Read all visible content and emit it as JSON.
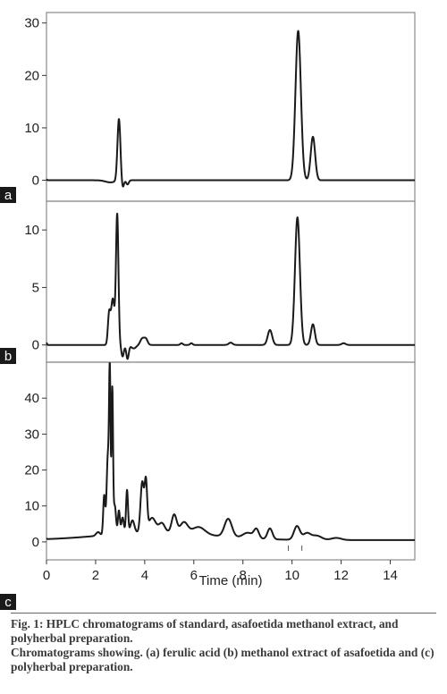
{
  "chart_data": {
    "type": "line",
    "xlabel": "Time (min)",
    "xlim": [
      0,
      15
    ],
    "x_ticks": [
      0,
      2,
      4,
      6,
      8,
      10,
      12,
      14
    ],
    "x_tick_labels": [
      "0",
      "2",
      "4",
      "6",
      "8",
      "10",
      "12",
      "14"
    ],
    "grid": false,
    "panels": [
      {
        "label": "a",
        "ylim": [
          -4,
          32
        ],
        "y_ticks": [
          0,
          10,
          20,
          30
        ],
        "y_tick_labels": [
          "0",
          "10",
          "20",
          "30"
        ],
        "baseline": 0,
        "peaks": [
          {
            "x": 2.95,
            "height": 11.8,
            "width": 0.06
          },
          {
            "x": 3.1,
            "height": -1.5,
            "width": 0.05
          },
          {
            "x": 3.3,
            "height": -0.8,
            "width": 0.05
          },
          {
            "x": 2.6,
            "height": -0.4,
            "width": 0.2
          },
          {
            "x": 10.25,
            "height": 28.5,
            "width": 0.11
          },
          {
            "x": 10.85,
            "height": 8.3,
            "width": 0.09
          }
        ]
      },
      {
        "label": "b",
        "ylim": [
          -1.5,
          12.5
        ],
        "y_ticks": [
          0,
          5,
          10
        ],
        "y_tick_labels": [
          "0",
          "5",
          "10"
        ],
        "baseline": 0,
        "peaks": [
          {
            "x": 2.55,
            "height": 2.6,
            "width": 0.05
          },
          {
            "x": 2.7,
            "height": 4.0,
            "width": 0.07
          },
          {
            "x": 2.88,
            "height": 11.3,
            "width": 0.05
          },
          {
            "x": 3.1,
            "height": -1.0,
            "width": 0.05
          },
          {
            "x": 3.3,
            "height": -1.2,
            "width": 0.05
          },
          {
            "x": 3.55,
            "height": -0.3,
            "width": 0.1
          },
          {
            "x": 3.9,
            "height": 0.55,
            "width": 0.08
          },
          {
            "x": 4.05,
            "height": 0.5,
            "width": 0.07
          },
          {
            "x": 5.5,
            "height": 0.15,
            "width": 0.05
          },
          {
            "x": 5.9,
            "height": 0.15,
            "width": 0.05
          },
          {
            "x": 7.5,
            "height": 0.2,
            "width": 0.08
          },
          {
            "x": 9.1,
            "height": 1.3,
            "width": 0.09
          },
          {
            "x": 10.22,
            "height": 11.1,
            "width": 0.1
          },
          {
            "x": 10.85,
            "height": 1.8,
            "width": 0.08
          },
          {
            "x": 12.1,
            "height": 0.15,
            "width": 0.08
          }
        ]
      },
      {
        "label": "c",
        "ylim": [
          -5,
          50
        ],
        "y_ticks": [
          0,
          10,
          20,
          30,
          40
        ],
        "y_tick_labels": [
          "0",
          "10",
          "20",
          "30",
          "40"
        ],
        "baseline": 0.5,
        "peaks": [
          {
            "x": 2.1,
            "height": 1.0,
            "width": 0.08
          },
          {
            "x": 2.35,
            "height": 11.0,
            "width": 0.04
          },
          {
            "x": 2.5,
            "height": 22.0,
            "width": 0.05
          },
          {
            "x": 2.58,
            "height": 42.5,
            "width": 0.03
          },
          {
            "x": 2.68,
            "height": 40.0,
            "width": 0.03
          },
          {
            "x": 2.78,
            "height": 8.0,
            "width": 0.05
          },
          {
            "x": 2.95,
            "height": 6.5,
            "width": 0.04
          },
          {
            "x": 3.1,
            "height": 4.5,
            "width": 0.05
          },
          {
            "x": 3.28,
            "height": 12.0,
            "width": 0.04
          },
          {
            "x": 3.5,
            "height": 3.5,
            "width": 0.08
          },
          {
            "x": 3.9,
            "height": 14.0,
            "width": 0.07
          },
          {
            "x": 4.05,
            "height": 13.0,
            "width": 0.05
          },
          {
            "x": 4.3,
            "height": 4.0,
            "width": 0.15
          },
          {
            "x": 4.7,
            "height": 2.5,
            "width": 0.12
          },
          {
            "x": 5.2,
            "height": 5.0,
            "width": 0.1
          },
          {
            "x": 5.6,
            "height": 3.0,
            "width": 0.15
          },
          {
            "x": 6.2,
            "height": 2.0,
            "width": 0.25
          },
          {
            "x": 7.4,
            "height": 5.0,
            "width": 0.15
          },
          {
            "x": 8.2,
            "height": 1.5,
            "width": 0.2
          },
          {
            "x": 8.55,
            "height": 2.5,
            "width": 0.1
          },
          {
            "x": 9.1,
            "height": 3.0,
            "width": 0.1
          },
          {
            "x": 10.2,
            "height": 3.8,
            "width": 0.12
          },
          {
            "x": 10.6,
            "height": 1.8,
            "width": 0.15
          },
          {
            "x": 11.0,
            "height": 1.2,
            "width": 0.2
          },
          {
            "x": 11.8,
            "height": 0.6,
            "width": 0.2
          }
        ],
        "drift": [
          {
            "x": 4.5,
            "height": 2.2,
            "width": 2.2
          }
        ]
      }
    ]
  },
  "caption": {
    "title": "Fig. 1: HPLC chromatograms of standard, asafoetida methanol extract, and polyherbal preparation.",
    "description": "Chromatograms showing. (a) ferulic acid (b) methanol extract of asafoetida and (c) polyherbal preparation."
  },
  "colors": {
    "trace": "#1a1a1a",
    "frame": "#8a8a8a",
    "label_box": "#1a1a1a",
    "label_text": "#ffffff"
  }
}
